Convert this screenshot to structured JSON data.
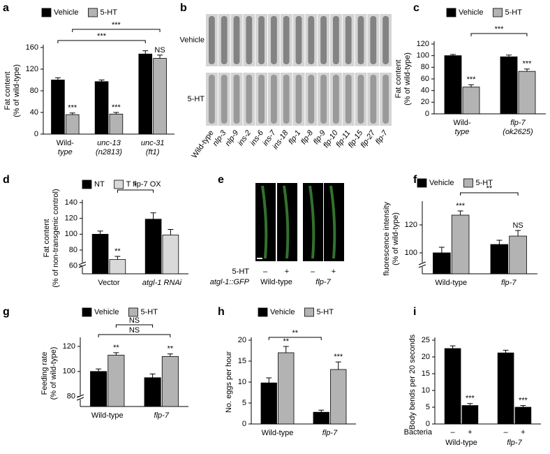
{
  "chart_data": [
    {
      "type": "bar",
      "panel": "a",
      "y_label": [
        "Fat content",
        "(% of wild-type)"
      ],
      "categories": [
        [
          "Wild-",
          "type"
        ],
        [
          "unc-13",
          "(n2813)"
        ],
        [
          "unc-31",
          "(ft1)"
        ]
      ],
      "series": [
        {
          "name": "Vehicle",
          "color": "#000000",
          "values": [
            100,
            97,
            148
          ],
          "errors": [
            4,
            3,
            6
          ],
          "annotations": [
            null,
            null,
            null
          ]
        },
        {
          "name": "5-HT",
          "color": "#b3b3b3",
          "values": [
            36,
            37,
            140
          ],
          "errors": [
            3,
            3,
            6
          ],
          "annotations": [
            "***",
            "***",
            "NS"
          ]
        }
      ],
      "brackets": [
        "***",
        "***"
      ],
      "ylim": [
        0,
        160
      ],
      "yticks": [
        0,
        40,
        80,
        120,
        160
      ],
      "legend": true,
      "axis_break": false
    },
    {
      "type": "bar",
      "panel": "c",
      "y_label": [
        "Fat content",
        "(% of wild-type)"
      ],
      "categories": [
        [
          "Wild-",
          "type"
        ],
        [
          "flp-7",
          "(ok2625)"
        ]
      ],
      "series": [
        {
          "name": "Vehicle",
          "color": "#000000",
          "values": [
            100,
            98
          ],
          "errors": [
            2,
            3
          ],
          "annotations": [
            null,
            null
          ]
        },
        {
          "name": "5-HT",
          "color": "#b3b3b3",
          "values": [
            46,
            73
          ],
          "errors": [
            4,
            4
          ],
          "annotations": [
            "***",
            "***"
          ]
        }
      ],
      "brackets": [
        "***"
      ],
      "ylim": [
        0,
        120
      ],
      "yticks": [
        0,
        20,
        40,
        60,
        80,
        100,
        120
      ],
      "legend": true,
      "axis_break": false
    },
    {
      "type": "bar",
      "panel": "d",
      "y_label": [
        "Fat content",
        "(% of non-transgenic control)"
      ],
      "categories": [
        [
          "Vector"
        ],
        [
          "atgl-1 RNAi"
        ]
      ],
      "series": [
        {
          "name": "NT",
          "color": "#000000",
          "values": [
            100,
            119
          ],
          "errors": [
            4,
            8
          ],
          "annotations": [
            null,
            null
          ]
        },
        {
          "name": "T flp-7 OX",
          "color": "#d9d9d9",
          "values": [
            68,
            99
          ],
          "errors": [
            4,
            7
          ],
          "annotations": [
            "**",
            null
          ]
        }
      ],
      "brackets": [
        "*"
      ],
      "ylim": [
        50,
        140
      ],
      "yticks": [
        60,
        80,
        100,
        120,
        140
      ],
      "legend": true,
      "axis_break": true
    },
    {
      "type": "bar",
      "panel": "f",
      "y_label": [
        "fluorescence intensity",
        "(% of wild-type)"
      ],
      "categories": [
        [
          "Wild-type"
        ],
        [
          "flp-7"
        ]
      ],
      "series": [
        {
          "name": "Vehicle",
          "color": "#000000",
          "values": [
            100,
            106
          ],
          "errors": [
            4,
            3
          ],
          "annotations": [
            null,
            null
          ]
        },
        {
          "name": "5-HT",
          "color": "#b3b3b3",
          "values": [
            127,
            112
          ],
          "errors": [
            3,
            4
          ],
          "annotations": [
            "***",
            "NS"
          ]
        }
      ],
      "brackets": [
        "**"
      ],
      "ylim": [
        85,
        135
      ],
      "yticks": [
        100,
        120
      ],
      "legend": true,
      "axis_break": true
    },
    {
      "type": "bar",
      "panel": "g",
      "y_label": [
        "Feeding rate",
        "(% of wild-type)"
      ],
      "categories": [
        [
          "Wild-type"
        ],
        [
          "flp-7"
        ]
      ],
      "series": [
        {
          "name": "Vehicle",
          "color": "#000000",
          "values": [
            100,
            95
          ],
          "errors": [
            2,
            3
          ],
          "annotations": [
            null,
            null
          ]
        },
        {
          "name": "5-HT",
          "color": "#b3b3b3",
          "values": [
            113,
            112
          ],
          "errors": [
            2,
            2
          ],
          "annotations": [
            "**",
            "**"
          ]
        }
      ],
      "brackets": [
        "NS",
        "NS"
      ],
      "ylim": [
        72,
        125
      ],
      "yticks": [
        80,
        100,
        120
      ],
      "legend": true,
      "axis_break": true
    },
    {
      "type": "bar",
      "panel": "h",
      "y_label": [
        "No. eggs per hour"
      ],
      "categories": [
        [
          "Wild-type"
        ],
        [
          "flp-7"
        ]
      ],
      "series": [
        {
          "name": "Vehicle",
          "color": "#000000",
          "values": [
            9.8,
            2.8
          ],
          "errors": [
            1.2,
            0.5
          ],
          "annotations": [
            null,
            null
          ]
        },
        {
          "name": "5-HT",
          "color": "#b3b3b3",
          "values": [
            17,
            13
          ],
          "errors": [
            1.5,
            1.8
          ],
          "annotations": [
            "**",
            "***"
          ]
        }
      ],
      "brackets": [
        "**"
      ],
      "ylim": [
        0,
        20
      ],
      "yticks": [
        0,
        5,
        10,
        15,
        20
      ],
      "legend": true,
      "axis_break": false
    },
    {
      "type": "bar",
      "panel": "i",
      "y_label": [
        "Body bends per 20 seconds"
      ],
      "x_sublabel": "Bacteria",
      "categories": [
        [
          "Wild-type"
        ],
        [
          "flp-7"
        ]
      ],
      "series": [
        {
          "name": "–",
          "color": "#000000",
          "values": [
            22.5,
            21.2
          ],
          "errors": [
            0.8,
            0.8
          ],
          "annotations": [
            null,
            null
          ]
        },
        {
          "name": "+",
          "color": "#000000",
          "values": [
            5.5,
            5.0
          ],
          "errors": [
            0.6,
            0.5
          ],
          "annotations": [
            "***",
            "***"
          ]
        }
      ],
      "brackets": [],
      "ylim": [
        0,
        25
      ],
      "yticks": [
        0,
        5,
        10,
        15,
        20,
        25
      ],
      "legend": false,
      "axis_break": false
    }
  ],
  "image_panels": [
    {
      "panel": "b",
      "row_labels": [
        "Vehicle",
        "5-HT"
      ],
      "column_labels": [
        "Wild-type",
        "nlp-3",
        "nlp-9",
        "ins-2",
        "ins-6",
        "ins-7",
        "ins-18",
        "flp-1",
        "flp-8",
        "flp-9",
        "flp-10",
        "flp-11",
        "flp-15",
        "flp-27",
        "flp-7"
      ]
    },
    {
      "panel": "e",
      "treatment_label": "5-HT",
      "reporter_label": "atgl-1::GFP",
      "signs": [
        "–",
        "+",
        "–",
        "+"
      ],
      "strains": [
        "Wild-type",
        "flp-7"
      ]
    }
  ]
}
